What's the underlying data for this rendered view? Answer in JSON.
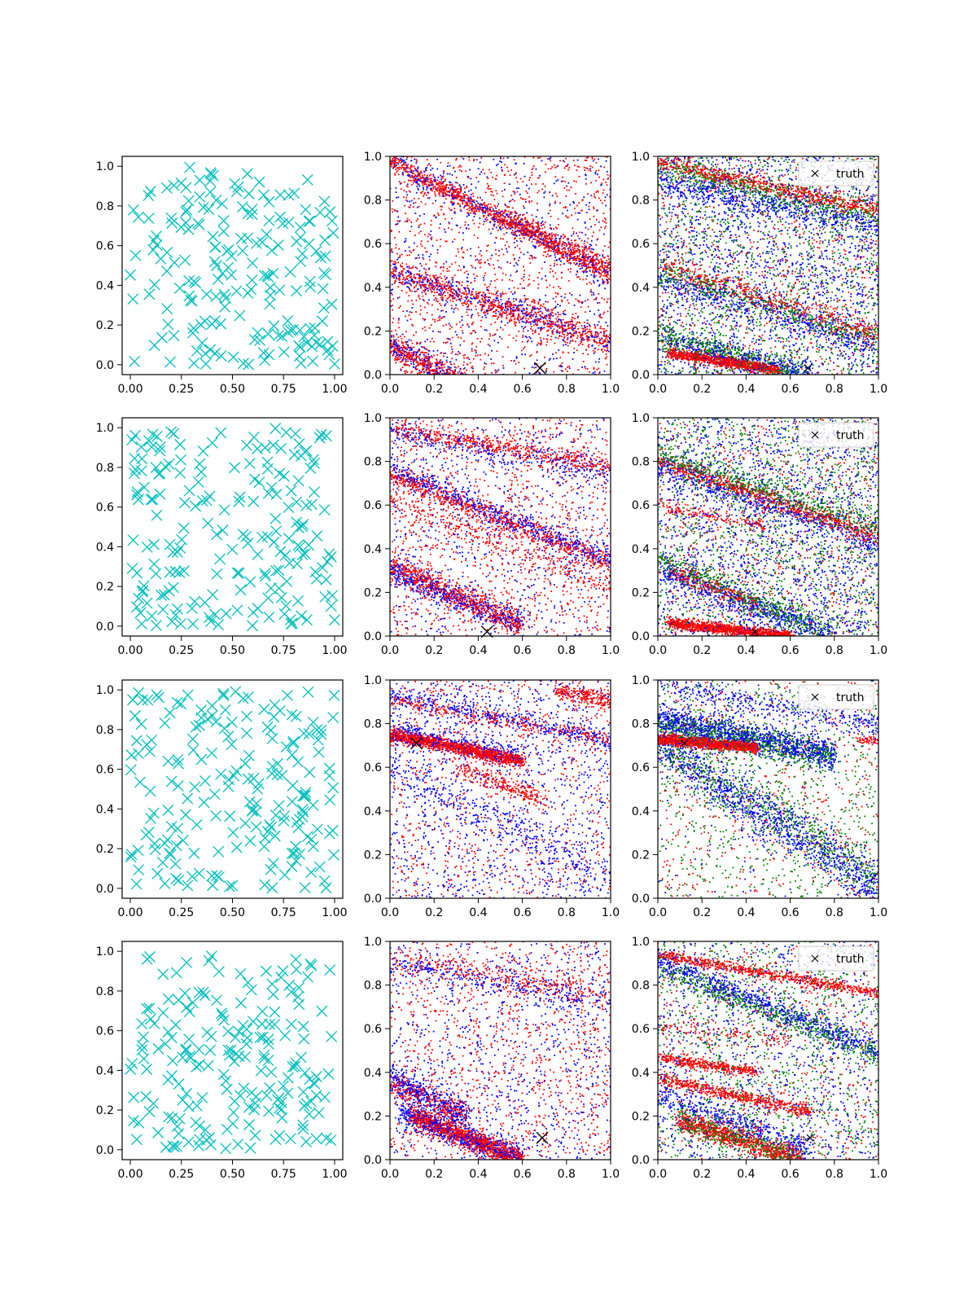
{
  "chart_data": {
    "type": "scatter",
    "layout": {
      "rows": 4,
      "cols": 3
    },
    "colors": {
      "samples": "#00bfbf",
      "series_red": "#ff0000",
      "series_blue": "#0000ff",
      "series_green": "#008000",
      "truth": "#000000"
    },
    "legend": {
      "label": "truth",
      "placement": "upper-right",
      "panels": "column 3"
    },
    "column_ticks": [
      {
        "xlim": [
          -0.04,
          1.04
        ],
        "ylim": [
          -0.05,
          1.05
        ],
        "xticks": [
          "0.00",
          "0.25",
          "0.50",
          "0.75",
          "1.00"
        ],
        "yticks": [
          "0.0",
          "0.2",
          "0.4",
          "0.6",
          "0.8",
          "1.0"
        ]
      },
      {
        "xlim": [
          0,
          1
        ],
        "ylim": [
          0,
          1
        ],
        "xticks": [
          "0.0",
          "0.2",
          "0.4",
          "0.6",
          "0.8",
          "1.0"
        ],
        "yticks": [
          "0.0",
          "0.2",
          "0.4",
          "0.6",
          "0.8",
          "1.0"
        ]
      },
      {
        "xlim": [
          0,
          1
        ],
        "ylim": [
          0,
          1
        ],
        "xticks": [
          "0.0",
          "0.2",
          "0.4",
          "0.6",
          "0.8",
          "1.0"
        ],
        "yticks": [
          "0.0",
          "0.2",
          "0.4",
          "0.6",
          "0.8",
          "1.0"
        ]
      }
    ],
    "rows": [
      {
        "truth": [
          0.68,
          0.03
        ],
        "bands_middle": [
          [
            0.0,
            0.98,
            1.0,
            0.45,
            1000,
            0.02,
            "r"
          ],
          [
            0.0,
            0.98,
            1.0,
            0.45,
            400,
            0.03,
            "b"
          ],
          [
            0.0,
            0.47,
            1.0,
            0.15,
            800,
            0.03,
            "r"
          ],
          [
            0.0,
            0.47,
            1.0,
            0.15,
            350,
            0.03,
            "b"
          ],
          [
            0.0,
            0.13,
            0.55,
            -0.15,
            700,
            0.03,
            "r"
          ],
          [
            0.0,
            0.13,
            0.55,
            -0.15,
            350,
            0.03,
            "b"
          ],
          [
            0.5,
            0.75,
            1.0,
            0.5,
            250,
            0.02,
            "r"
          ]
        ],
        "uniform_middle": [
          1200,
          600
        ],
        "bands_right": [
          [
            0.0,
            0.98,
            1.0,
            0.75,
            700,
            0.02,
            "r"
          ],
          [
            0.0,
            0.95,
            1.0,
            0.72,
            500,
            0.03,
            "g"
          ],
          [
            0.0,
            0.88,
            1.0,
            0.68,
            500,
            0.03,
            "b"
          ],
          [
            0.0,
            0.5,
            1.0,
            0.18,
            500,
            0.03,
            "r"
          ],
          [
            0.0,
            0.47,
            1.0,
            0.15,
            400,
            0.03,
            "g"
          ],
          [
            0.0,
            0.44,
            1.0,
            0.12,
            400,
            0.03,
            "b"
          ],
          [
            0.05,
            0.1,
            0.55,
            0.02,
            1000,
            0.012,
            "r"
          ],
          [
            0.0,
            0.18,
            0.65,
            0.0,
            450,
            0.03,
            "g"
          ],
          [
            0.0,
            0.15,
            0.7,
            0.0,
            400,
            0.03,
            "b"
          ]
        ],
        "uniform_right": [
          1700,
          1300,
          700
        ]
      },
      {
        "truth": [
          0.44,
          0.02
        ],
        "bands_middle": [
          [
            0.0,
            0.95,
            1.0,
            0.78,
            500,
            0.02,
            "r"
          ],
          [
            0.0,
            0.93,
            1.0,
            0.75,
            300,
            0.03,
            "b"
          ],
          [
            0.0,
            0.76,
            1.0,
            0.35,
            600,
            0.03,
            "b"
          ],
          [
            0.0,
            0.74,
            1.0,
            0.33,
            700,
            0.025,
            "r"
          ],
          [
            0.0,
            0.32,
            0.6,
            0.05,
            700,
            0.03,
            "r"
          ],
          [
            0.0,
            0.3,
            0.6,
            0.05,
            500,
            0.03,
            "b"
          ],
          [
            0.0,
            0.62,
            1.0,
            0.22,
            300,
            0.03,
            "r"
          ]
        ],
        "uniform_middle": [
          1100,
          700
        ],
        "bands_right": [
          [
            0.0,
            0.8,
            1.0,
            0.45,
            700,
            0.02,
            "r"
          ],
          [
            0.0,
            0.82,
            1.0,
            0.5,
            600,
            0.03,
            "g"
          ],
          [
            0.0,
            0.78,
            1.0,
            0.42,
            500,
            0.03,
            "b"
          ],
          [
            0.05,
            0.06,
            0.6,
            0.0,
            1200,
            0.012,
            "r"
          ],
          [
            0.05,
            0.3,
            0.45,
            0.15,
            250,
            0.02,
            "r"
          ],
          [
            0.0,
            0.6,
            0.5,
            0.5,
            150,
            0.015,
            "r"
          ],
          [
            0.0,
            0.35,
            0.8,
            0.0,
            500,
            0.03,
            "g"
          ],
          [
            0.0,
            0.3,
            0.8,
            0.0,
            500,
            0.03,
            "b"
          ]
        ],
        "uniform_right": [
          1700,
          1400,
          700
        ]
      },
      {
        "truth": [
          0.12,
          0.71
        ],
        "bands_middle": [
          [
            0.0,
            0.75,
            0.6,
            0.63,
            1400,
            0.015,
            "r"
          ],
          [
            0.0,
            0.77,
            0.6,
            0.64,
            350,
            0.025,
            "b"
          ],
          [
            0.0,
            0.93,
            1.0,
            0.72,
            350,
            0.02,
            "b"
          ],
          [
            0.0,
            0.91,
            1.0,
            0.72,
            300,
            0.02,
            "r"
          ],
          [
            0.75,
            0.95,
            1.0,
            0.9,
            250,
            0.02,
            "r"
          ],
          [
            0.3,
            0.6,
            0.7,
            0.45,
            250,
            0.025,
            "r"
          ],
          [
            0.0,
            0.6,
            1.0,
            0.1,
            300,
            0.04,
            "b"
          ]
        ],
        "uniform_middle": [
          800,
          1200
        ],
        "bands_right": [
          [
            0.0,
            0.73,
            0.45,
            0.69,
            1300,
            0.012,
            "r"
          ],
          [
            0.0,
            0.82,
            0.8,
            0.65,
            1200,
            0.035,
            "b"
          ],
          [
            0.0,
            0.8,
            0.8,
            0.65,
            700,
            0.035,
            "g"
          ],
          [
            0.0,
            0.98,
            1.0,
            0.78,
            400,
            0.03,
            "b"
          ],
          [
            0.0,
            0.7,
            1.0,
            0.05,
            1100,
            0.06,
            "b"
          ],
          [
            0.0,
            0.7,
            1.0,
            0.1,
            600,
            0.06,
            "g"
          ],
          [
            0.9,
            0.73,
            1.0,
            0.72,
            50,
            0.01,
            "r"
          ]
        ],
        "uniform_right": [
          150,
          800,
          500
        ]
      },
      {
        "truth": [
          0.69,
          0.1
        ],
        "bands_middle": [
          [
            0.1,
            0.2,
            0.6,
            0.0,
            1200,
            0.025,
            "r"
          ],
          [
            0.05,
            0.22,
            0.6,
            0.0,
            700,
            0.03,
            "b"
          ],
          [
            0.0,
            0.38,
            0.35,
            0.2,
            400,
            0.03,
            "b"
          ],
          [
            0.0,
            0.35,
            0.35,
            0.2,
            300,
            0.03,
            "r"
          ],
          [
            0.0,
            0.92,
            1.0,
            0.75,
            300,
            0.03,
            "r"
          ],
          [
            0.0,
            0.9,
            1.0,
            0.72,
            300,
            0.03,
            "b"
          ]
        ],
        "uniform_middle": [
          1100,
          900
        ],
        "bands_right": [
          [
            0.0,
            0.94,
            1.0,
            0.76,
            700,
            0.012,
            "r"
          ],
          [
            0.0,
            0.9,
            1.0,
            0.5,
            700,
            0.03,
            "b"
          ],
          [
            0.0,
            0.88,
            1.0,
            0.48,
            500,
            0.03,
            "g"
          ],
          [
            0.0,
            0.37,
            0.7,
            0.22,
            600,
            0.015,
            "r"
          ],
          [
            0.0,
            0.47,
            0.45,
            0.4,
            400,
            0.012,
            "r"
          ],
          [
            0.1,
            0.18,
            0.65,
            0.0,
            800,
            0.025,
            "r"
          ],
          [
            0.1,
            0.18,
            0.65,
            0.0,
            450,
            0.03,
            "g"
          ],
          [
            0.0,
            0.3,
            0.7,
            0.05,
            400,
            0.03,
            "b"
          ],
          [
            0.0,
            0.6,
            0.6,
            0.55,
            100,
            0.02,
            "r"
          ]
        ],
        "uniform_right": [
          1000,
          1100,
          600
        ]
      }
    ]
  }
}
